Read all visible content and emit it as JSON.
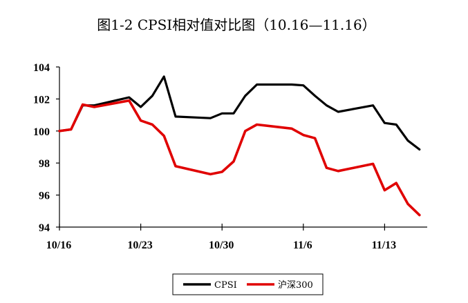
{
  "chart_data": {
    "type": "line",
    "title": "图1-2 CPSI相对值对比图（10.16—11.16）",
    "xlabel": "",
    "ylabel": "",
    "x_ticks": [
      "10/16",
      "10/23",
      "10/30",
      "11/6",
      "11/13"
    ],
    "x_tick_day_index": [
      0,
      7,
      14,
      21,
      28
    ],
    "y_ticks": [
      94,
      96,
      98,
      100,
      102,
      104
    ],
    "ylim": [
      94,
      104
    ],
    "grid": false,
    "legend_position": "bottom",
    "series": [
      {
        "name": "CPSI",
        "color": "#000000",
        "points": [
          {
            "x": "10/16",
            "y": 100.0
          },
          {
            "x": "10/17",
            "y": 100.1
          },
          {
            "x": "10/18",
            "y": 101.6
          },
          {
            "x": "10/19",
            "y": 101.6
          },
          {
            "x": "10/22",
            "y": 102.1
          },
          {
            "x": "10/23",
            "y": 101.5
          },
          {
            "x": "10/24",
            "y": 102.2
          },
          {
            "x": "10/25",
            "y": 103.4
          },
          {
            "x": "10/26",
            "y": 100.9
          },
          {
            "x": "10/29",
            "y": 100.8
          },
          {
            "x": "10/30",
            "y": 101.1
          },
          {
            "x": "10/31",
            "y": 101.1
          },
          {
            "x": "11/1",
            "y": 102.2
          },
          {
            "x": "11/2",
            "y": 102.9
          },
          {
            "x": "11/5",
            "y": 102.9
          },
          {
            "x": "11/6",
            "y": 102.85
          },
          {
            "x": "11/7",
            "y": 102.2
          },
          {
            "x": "11/8",
            "y": 101.6
          },
          {
            "x": "11/9",
            "y": 101.2
          },
          {
            "x": "11/12",
            "y": 101.6
          },
          {
            "x": "11/13",
            "y": 100.5
          },
          {
            "x": "11/14",
            "y": 100.4
          },
          {
            "x": "11/15",
            "y": 99.4
          },
          {
            "x": "11/16",
            "y": 98.85
          }
        ]
      },
      {
        "name": "沪深300",
        "color": "#e00000",
        "points": [
          {
            "x": "10/16",
            "y": 100.0
          },
          {
            "x": "10/17",
            "y": 100.1
          },
          {
            "x": "10/18",
            "y": 101.65
          },
          {
            "x": "10/19",
            "y": 101.5
          },
          {
            "x": "10/22",
            "y": 101.9
          },
          {
            "x": "10/23",
            "y": 100.65
          },
          {
            "x": "10/24",
            "y": 100.4
          },
          {
            "x": "10/25",
            "y": 99.7
          },
          {
            "x": "10/26",
            "y": 97.8
          },
          {
            "x": "10/29",
            "y": 97.3
          },
          {
            "x": "10/30",
            "y": 97.45
          },
          {
            "x": "10/31",
            "y": 98.1
          },
          {
            "x": "11/1",
            "y": 100.0
          },
          {
            "x": "11/2",
            "y": 100.4
          },
          {
            "x": "11/5",
            "y": 100.15
          },
          {
            "x": "11/6",
            "y": 99.75
          },
          {
            "x": "11/7",
            "y": 99.55
          },
          {
            "x": "11/8",
            "y": 97.7
          },
          {
            "x": "11/9",
            "y": 97.5
          },
          {
            "x": "11/12",
            "y": 97.95
          },
          {
            "x": "11/13",
            "y": 96.3
          },
          {
            "x": "11/14",
            "y": 96.75
          },
          {
            "x": "11/15",
            "y": 95.45
          },
          {
            "x": "11/16",
            "y": 94.75
          }
        ]
      }
    ]
  }
}
